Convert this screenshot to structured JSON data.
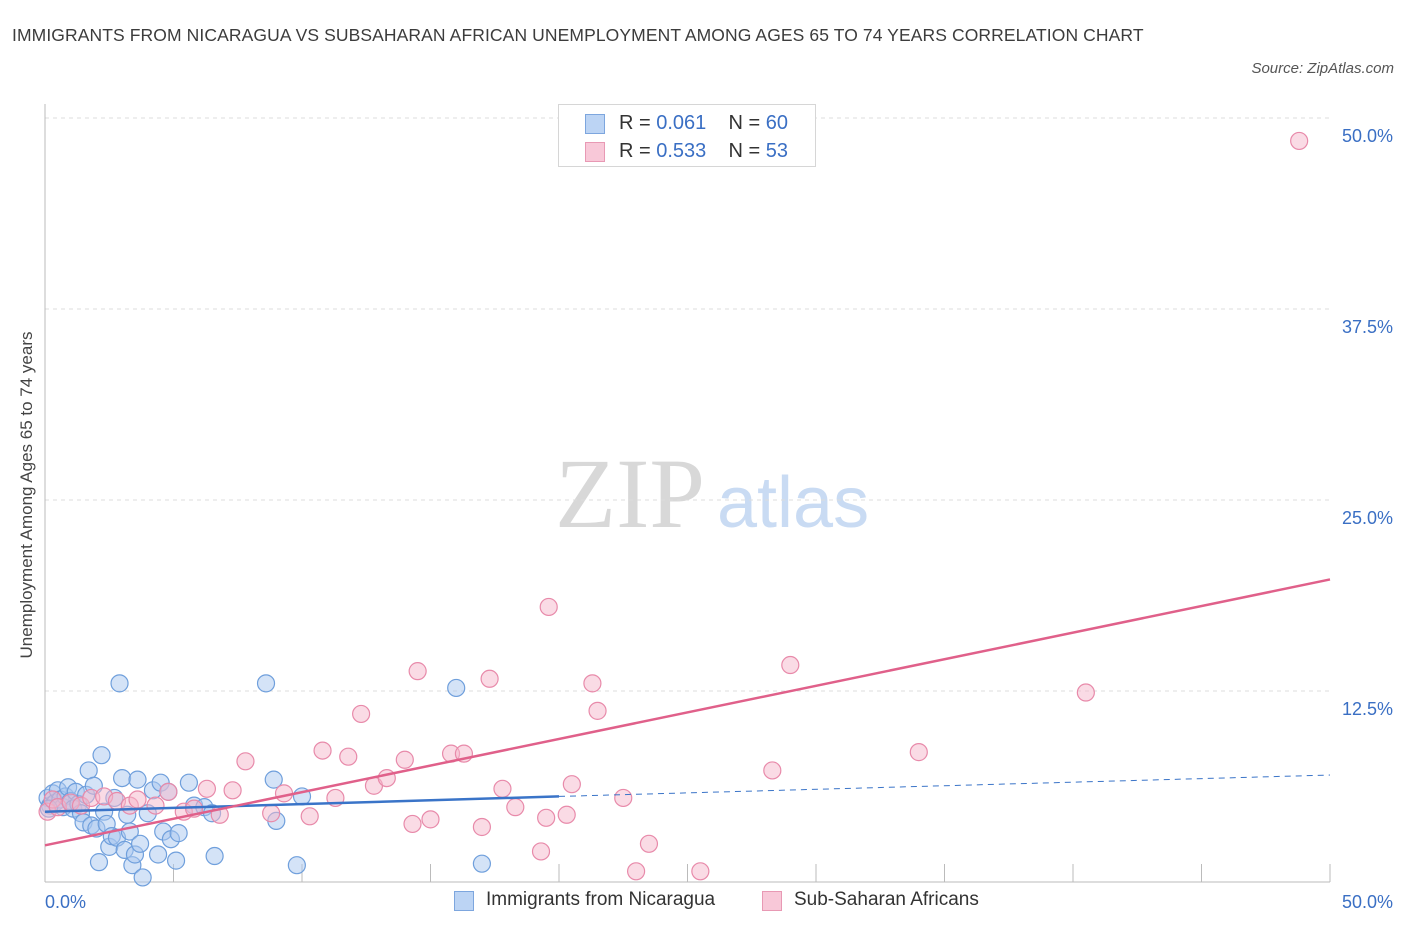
{
  "title": "IMMIGRANTS FROM NICARAGUA VS SUBSAHARAN AFRICAN UNEMPLOYMENT AMONG AGES 65 TO 74 YEARS CORRELATION CHART",
  "source": "Source: ZipAtlas.com",
  "watermark": {
    "zip": "ZIP",
    "atlas": "atlas"
  },
  "legend_top": {
    "row1": {
      "r_label": "R = ",
      "r_value": "0.061",
      "n_label": "N = ",
      "n_value": "60"
    },
    "row2": {
      "r_label": "R = ",
      "r_value": "0.533",
      "n_label": "N = ",
      "n_value": "53"
    }
  },
  "colors": {
    "blue_fill": "#aac8f0",
    "blue_stroke": "#6f9fdc",
    "blue_line": "#3a74c8",
    "pink_fill": "#f5b8cc",
    "pink_stroke": "#e88aaa",
    "pink_line": "#e0608a",
    "grid": "#dcdcdc",
    "axis": "#bbbbbb",
    "tick_text": "#3a6fc4"
  },
  "chart_data": {
    "type": "scatter",
    "title": "IMMIGRANTS FROM NICARAGUA VS SUBSAHARAN AFRICAN UNEMPLOYMENT AMONG AGES 65 TO 74 YEARS CORRELATION CHART",
    "xlabel": "",
    "ylabel": "Unemployment Among Ages 65 to 74 years",
    "xlim": [
      0,
      50
    ],
    "ylim": [
      0,
      50
    ],
    "x_tick_labels": [
      "0.0%",
      "50.0%"
    ],
    "y_ticks": [
      12.5,
      25.0,
      37.5,
      50.0
    ],
    "y_tick_labels": [
      "12.5%",
      "25.0%",
      "37.5%",
      "50.0%"
    ],
    "grid": "horizontal dashed",
    "series": [
      {
        "name": "Immigrants from Nicaragua",
        "color": "#aac8f0",
        "trend": {
          "x": [
            0,
            20
          ],
          "y": [
            4.6,
            5.6
          ],
          "dashed_to": [
            50,
            7.0
          ]
        },
        "points": [
          [
            0.1,
            5.5
          ],
          [
            0.2,
            5.0
          ],
          [
            0.3,
            5.8
          ],
          [
            0.4,
            5.2
          ],
          [
            0.5,
            6.0
          ],
          [
            0.6,
            5.4
          ],
          [
            0.7,
            4.9
          ],
          [
            0.8,
            5.6
          ],
          [
            0.9,
            6.2
          ],
          [
            1.0,
            5.3
          ],
          [
            1.1,
            4.8
          ],
          [
            1.2,
            5.9
          ],
          [
            1.3,
            5.1
          ],
          [
            1.4,
            4.5
          ],
          [
            1.5,
            3.9
          ],
          [
            1.6,
            5.7
          ],
          [
            1.7,
            7.3
          ],
          [
            1.8,
            3.7
          ],
          [
            1.9,
            6.3
          ],
          [
            2.0,
            3.5
          ],
          [
            2.1,
            1.3
          ],
          [
            2.2,
            8.3
          ],
          [
            2.3,
            4.6
          ],
          [
            2.4,
            3.8
          ],
          [
            2.5,
            2.3
          ],
          [
            2.6,
            3.0
          ],
          [
            2.7,
            5.5
          ],
          [
            2.8,
            2.9
          ],
          [
            2.9,
            13.0
          ],
          [
            3.0,
            6.8
          ],
          [
            3.1,
            2.1
          ],
          [
            3.2,
            4.4
          ],
          [
            3.3,
            3.3
          ],
          [
            3.4,
            1.1
          ],
          [
            3.5,
            1.8
          ],
          [
            3.6,
            6.7
          ],
          [
            3.7,
            2.5
          ],
          [
            3.8,
            0.3
          ],
          [
            4.0,
            4.5
          ],
          [
            4.2,
            6.0
          ],
          [
            4.4,
            1.8
          ],
          [
            4.5,
            6.5
          ],
          [
            4.6,
            3.3
          ],
          [
            4.8,
            5.9
          ],
          [
            4.9,
            2.8
          ],
          [
            5.1,
            1.4
          ],
          [
            5.2,
            3.2
          ],
          [
            5.6,
            6.5
          ],
          [
            5.8,
            5.0
          ],
          [
            6.2,
            4.9
          ],
          [
            6.5,
            4.5
          ],
          [
            6.6,
            1.7
          ],
          [
            8.6,
            13.0
          ],
          [
            8.9,
            6.7
          ],
          [
            9.0,
            4.0
          ],
          [
            9.8,
            1.1
          ],
          [
            10.0,
            5.6
          ],
          [
            16.0,
            12.7
          ],
          [
            17.0,
            1.2
          ],
          [
            0.15,
            4.8
          ]
        ]
      },
      {
        "name": "Sub-Saharan Africans",
        "color": "#f5b8cc",
        "trend": {
          "x": [
            0,
            50
          ],
          "y": [
            2.4,
            19.8
          ]
        },
        "points": [
          [
            0.1,
            4.6
          ],
          [
            0.3,
            5.4
          ],
          [
            0.5,
            4.9
          ],
          [
            1.0,
            5.2
          ],
          [
            1.4,
            5.0
          ],
          [
            1.8,
            5.5
          ],
          [
            2.3,
            5.6
          ],
          [
            2.8,
            5.3
          ],
          [
            3.3,
            5.0
          ],
          [
            3.6,
            5.4
          ],
          [
            4.3,
            5.0
          ],
          [
            4.8,
            5.9
          ],
          [
            5.4,
            4.6
          ],
          [
            5.8,
            4.8
          ],
          [
            6.3,
            6.1
          ],
          [
            6.8,
            4.4
          ],
          [
            7.3,
            6.0
          ],
          [
            7.8,
            7.9
          ],
          [
            8.8,
            4.5
          ],
          [
            9.3,
            5.8
          ],
          [
            10.3,
            4.3
          ],
          [
            10.8,
            8.6
          ],
          [
            11.3,
            5.5
          ],
          [
            11.8,
            8.2
          ],
          [
            12.3,
            11.0
          ],
          [
            12.8,
            6.3
          ],
          [
            13.3,
            6.8
          ],
          [
            14.0,
            8.0
          ],
          [
            14.3,
            3.8
          ],
          [
            14.5,
            13.8
          ],
          [
            15.0,
            4.1
          ],
          [
            15.8,
            8.4
          ],
          [
            16.3,
            8.4
          ],
          [
            17.0,
            3.6
          ],
          [
            17.3,
            13.3
          ],
          [
            17.8,
            6.1
          ],
          [
            18.3,
            4.9
          ],
          [
            19.3,
            2.0
          ],
          [
            19.5,
            4.2
          ],
          [
            19.6,
            18.0
          ],
          [
            20.3,
            4.4
          ],
          [
            20.5,
            6.4
          ],
          [
            21.3,
            13.0
          ],
          [
            21.5,
            11.2
          ],
          [
            22.5,
            5.5
          ],
          [
            23.0,
            0.7
          ],
          [
            23.5,
            2.5
          ],
          [
            25.5,
            0.7
          ],
          [
            28.3,
            7.3
          ],
          [
            29.0,
            14.2
          ],
          [
            34.0,
            8.5
          ],
          [
            40.5,
            12.4
          ],
          [
            48.8,
            48.5
          ]
        ]
      }
    ]
  },
  "legend_bottom": {
    "item1": "Immigrants from Nicaragua",
    "item2": "Sub-Saharan Africans"
  }
}
